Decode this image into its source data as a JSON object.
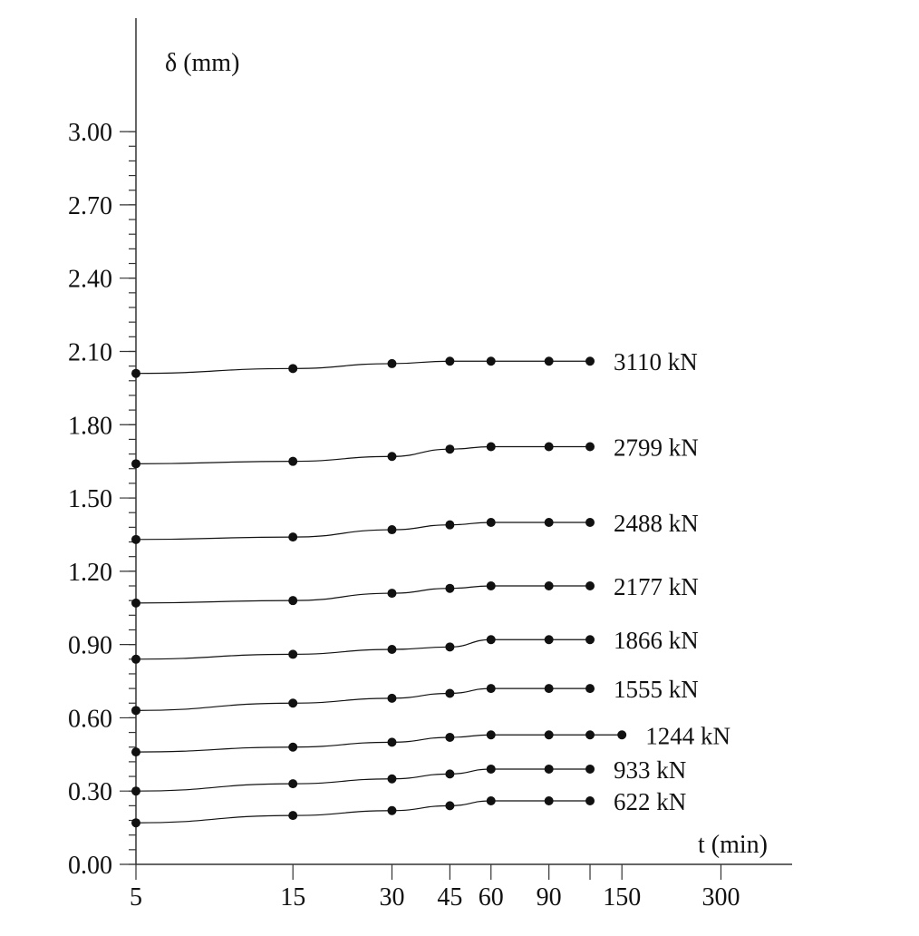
{
  "chart_data": {
    "type": "line",
    "title": "",
    "xlabel": "t (min)",
    "ylabel": "δ (mm)",
    "x_scale": "log",
    "xlim": [
      5,
      600
    ],
    "ylim": [
      0,
      3.45
    ],
    "x_ticks": [
      5,
      15,
      30,
      45,
      60,
      90,
      120,
      150,
      300
    ],
    "x_tick_labels": [
      "5",
      "15",
      "30",
      "45",
      "60",
      "90",
      "",
      "150",
      "300"
    ],
    "y_ticks": [
      0,
      0.3,
      0.6,
      0.9,
      1.2,
      1.5,
      1.8,
      2.1,
      2.4,
      2.7,
      3.0
    ],
    "y_tick_labels": [
      "0.00",
      "0.30",
      "0.60",
      "0.90",
      "1.20",
      "1.50",
      "1.80",
      "2.10",
      "2.40",
      "2.70",
      "3.00"
    ],
    "y_minor_step": 0.06,
    "grid": false,
    "legend": "inline labels at right end of each series",
    "color": "#111111",
    "series": [
      {
        "name": "3110 kN",
        "x": [
          5,
          15,
          30,
          45,
          60,
          90,
          120
        ],
        "y": [
          2.01,
          2.03,
          2.05,
          2.06,
          2.06,
          2.06,
          2.06
        ]
      },
      {
        "name": "2799 kN",
        "x": [
          5,
          15,
          30,
          45,
          60,
          90,
          120
        ],
        "y": [
          1.64,
          1.65,
          1.67,
          1.7,
          1.71,
          1.71,
          1.71
        ]
      },
      {
        "name": "2488 kN",
        "x": [
          5,
          15,
          30,
          45,
          60,
          90,
          120
        ],
        "y": [
          1.33,
          1.34,
          1.37,
          1.39,
          1.4,
          1.4,
          1.4
        ]
      },
      {
        "name": "2177 kN",
        "x": [
          5,
          15,
          30,
          45,
          60,
          90,
          120
        ],
        "y": [
          1.07,
          1.08,
          1.11,
          1.13,
          1.14,
          1.14,
          1.14
        ]
      },
      {
        "name": "1866 kN",
        "x": [
          5,
          15,
          30,
          45,
          60,
          90,
          120
        ],
        "y": [
          0.84,
          0.86,
          0.88,
          0.89,
          0.92,
          0.92,
          0.92
        ]
      },
      {
        "name": "1555 kN",
        "x": [
          5,
          15,
          30,
          45,
          60,
          90,
          120
        ],
        "y": [
          0.63,
          0.66,
          0.68,
          0.7,
          0.72,
          0.72,
          0.72
        ]
      },
      {
        "name": "1244 kN",
        "x": [
          5,
          15,
          30,
          45,
          60,
          90,
          120,
          150
        ],
        "y": [
          0.46,
          0.48,
          0.5,
          0.52,
          0.53,
          0.53,
          0.53,
          0.53
        ]
      },
      {
        "name": "933 kN",
        "x": [
          5,
          15,
          30,
          45,
          60,
          90,
          120
        ],
        "y": [
          0.3,
          0.33,
          0.35,
          0.37,
          0.39,
          0.39,
          0.39
        ]
      },
      {
        "name": "622 kN",
        "x": [
          5,
          15,
          30,
          45,
          60,
          90,
          120
        ],
        "y": [
          0.17,
          0.2,
          0.22,
          0.24,
          0.26,
          0.26,
          0.26
        ]
      }
    ]
  }
}
